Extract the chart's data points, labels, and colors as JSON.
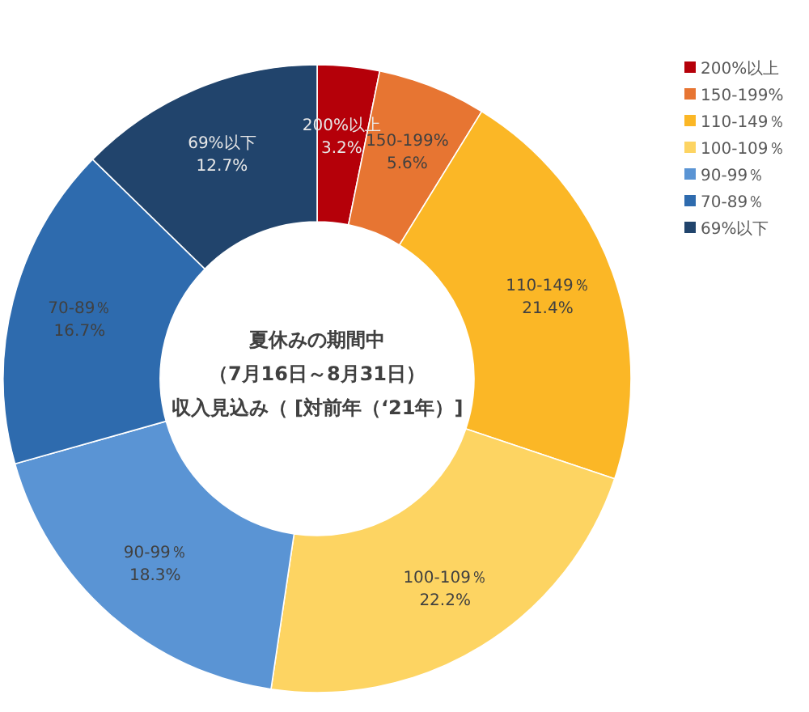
{
  "chart_data": {
    "type": "donut",
    "title": "夏休みの期間中",
    "subtitle": "（7月16日～8月31日）",
    "annotations": [
      "収入見込み（ [対前年（‘21年）]"
    ],
    "categories": [
      "200%以上",
      "150-199%",
      "110-149％",
      "100-109％",
      "90-99％",
      "70-89％",
      "69%以下"
    ],
    "values": [
      3.2,
      5.6,
      21.4,
      22.2,
      18.3,
      16.7,
      12.7
    ],
    "colors": [
      "#b50009",
      "#e77532",
      "#fbb726",
      "#fdd462",
      "#5a94d4",
      "#2e6bae",
      "#21446c"
    ],
    "value_labels": [
      "3.2%",
      "5.6%",
      "21.4%",
      "22.2%",
      "18.3%",
      "16.7%",
      "12.7%"
    ],
    "legend": "right"
  }
}
